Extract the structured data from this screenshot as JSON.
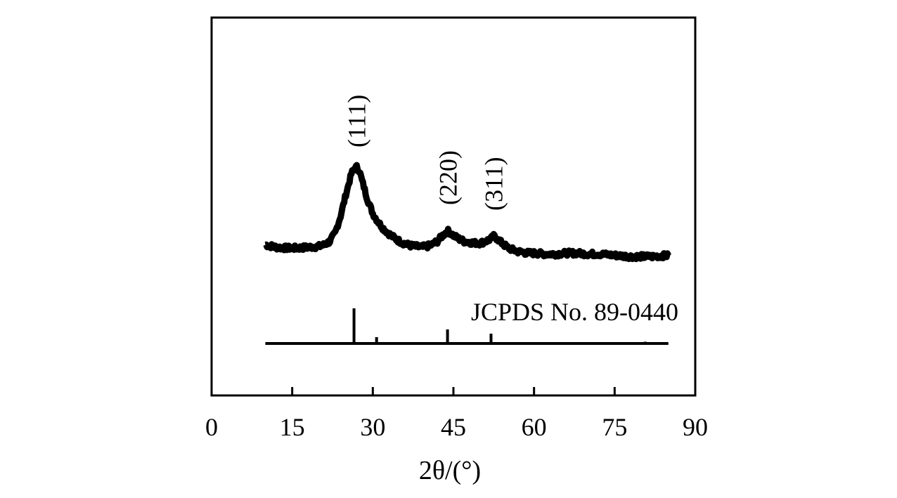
{
  "chart_data": {
    "type": "line",
    "title": "",
    "xlabel": "2θ/(°)",
    "ylabel": "",
    "xlim": [
      0,
      90
    ],
    "xticks": [
      0,
      15,
      30,
      45,
      60,
      75,
      90
    ],
    "xtick_labels": [
      "0",
      "15",
      "30",
      "45",
      "60",
      "75",
      "90"
    ],
    "y_ticks_shown": false,
    "grid": false,
    "series": [
      {
        "x": [
          10,
          12,
          14,
          16,
          18,
          20,
          21,
          22,
          23,
          24,
          25,
          26,
          26.5,
          27,
          27.5,
          28,
          29,
          30,
          31,
          32,
          33,
          34,
          35,
          36,
          37,
          38,
          39,
          40,
          41,
          42,
          43,
          43.5,
          44,
          44.5,
          45,
          46,
          47,
          48,
          49,
          50,
          51,
          52,
          52.5,
          53,
          54,
          55,
          56,
          57,
          58,
          59,
          60,
          62,
          64,
          66,
          68,
          70,
          72,
          74,
          76,
          78,
          80,
          82,
          84,
          85
        ],
        "y": [
          0.08,
          0.05,
          0.04,
          0.04,
          0.05,
          0.06,
          0.08,
          0.12,
          0.22,
          0.42,
          0.68,
          0.92,
          0.98,
          1.0,
          0.96,
          0.84,
          0.62,
          0.45,
          0.35,
          0.27,
          0.21,
          0.16,
          0.12,
          0.09,
          0.07,
          0.06,
          0.05,
          0.06,
          0.08,
          0.12,
          0.19,
          0.22,
          0.24,
          0.22,
          0.19,
          0.15,
          0.12,
          0.11,
          0.1,
          0.1,
          0.12,
          0.15,
          0.18,
          0.16,
          0.1,
          0.05,
          0.02,
          0.0,
          -0.01,
          -0.02,
          -0.02,
          -0.03,
          -0.03,
          -0.02,
          -0.02,
          -0.03,
          -0.03,
          -0.04,
          -0.05,
          -0.06,
          -0.06,
          -0.06,
          -0.05,
          -0.05
        ]
      }
    ],
    "peak_labels": [
      {
        "text": "(111)",
        "x": 27
      },
      {
        "text": "(220)",
        "x": 44
      },
      {
        "text": "(311)",
        "x": 52.5
      }
    ],
    "reference_pattern": {
      "label": "JCPDS No. 89-0440",
      "x_range": [
        10,
        85
      ],
      "lines": [
        {
          "x": 26.5,
          "intensity": 1.0
        },
        {
          "x": 30.7,
          "intensity": 0.18
        },
        {
          "x": 43.9,
          "intensity": 0.4
        },
        {
          "x": 52.0,
          "intensity": 0.28
        },
        {
          "x": 54.5,
          "intensity": 0.04
        },
        {
          "x": 63.8,
          "intensity": 0.04
        },
        {
          "x": 70.2,
          "intensity": 0.04
        },
        {
          "x": 72.4,
          "intensity": 0.04
        },
        {
          "x": 80.7,
          "intensity": 0.05
        }
      ]
    }
  }
}
